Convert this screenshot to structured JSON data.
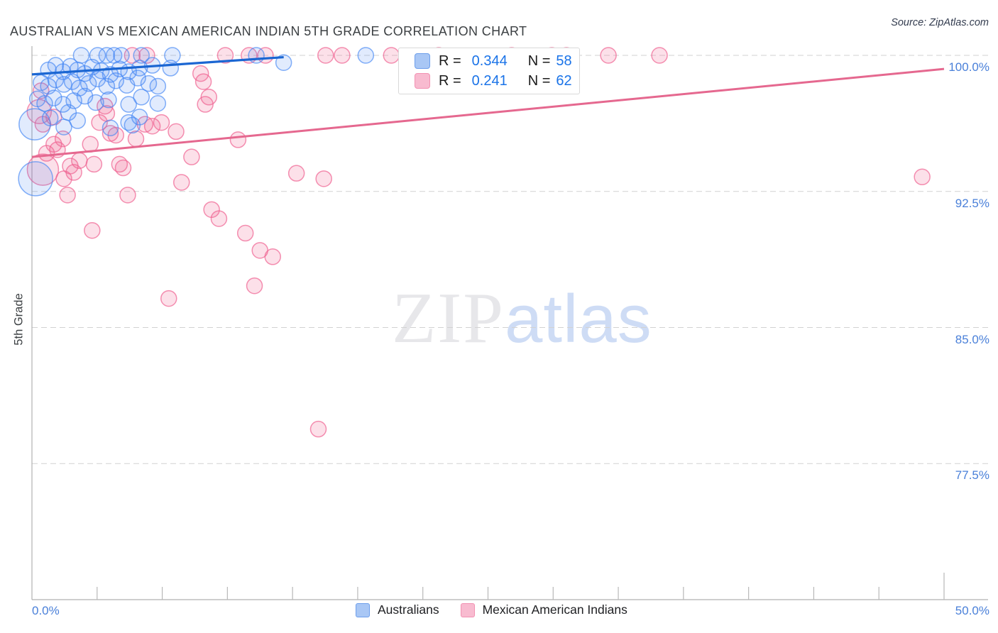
{
  "header": {
    "title": "AUSTRALIAN VS MEXICAN AMERICAN INDIAN 5TH GRADE CORRELATION CHART",
    "source": "Source: ZipAtlas.com"
  },
  "watermark": {
    "part1": "ZIP",
    "part2": "atlas"
  },
  "y_axis_title": "5th Grade",
  "legend_box": {
    "rows": [
      {
        "series": "Australians",
        "r_label": "R =",
        "r_value": "0.344",
        "n_label": "N =",
        "n_value": "58"
      },
      {
        "series": "Mexican American Indians",
        "r_label": "R =",
        "r_value": "0.241",
        "n_label": "N =",
        "n_value": "62"
      }
    ]
  },
  "bottom_legend": [
    {
      "label": "Australians"
    },
    {
      "label": "Mexican American Indians"
    }
  ],
  "chart_data": {
    "type": "scatter",
    "title": "AUSTRALIAN VS MEXICAN AMERICAN INDIAN 5TH GRADE CORRELATION CHART",
    "xlabel": "",
    "ylabel": "5th Grade",
    "x_range": [
      0,
      50
    ],
    "y_range": [
      70,
      100.5
    ],
    "x_tick_labels": [
      "0.0%",
      "50.0%"
    ],
    "y_ticks": [
      {
        "label": "100.0%",
        "value": 100.0
      },
      {
        "label": "92.5%",
        "value": 92.5
      },
      {
        "label": "85.0%",
        "value": 85.0
      },
      {
        "label": "77.5%",
        "value": 77.5
      }
    ],
    "grid": "horizontal-dashed",
    "legend_position": "top-right",
    "colors": {
      "australians_stroke": "#4285f4",
      "australians_fill": "#a9c7f5",
      "australians_trend": "#1b66d2",
      "mexican_stroke": "#f06292",
      "mexican_fill": "#f8bbd0",
      "mexican_trend": "#e5688f",
      "axis_text": "#4a80d9",
      "gridline": "#d2d2d2"
    },
    "series": [
      {
        "name": "Australians",
        "R": 0.344,
        "N": 58,
        "trend": {
          "x": [
            0,
            13.8
          ],
          "y": [
            98.95,
            99.9
          ]
        },
        "points": [
          [
            2.7,
            100
          ],
          [
            3.6,
            100
          ],
          [
            4.1,
            100
          ],
          [
            4.5,
            100
          ],
          [
            4.9,
            100
          ],
          [
            6.0,
            100
          ],
          [
            7.7,
            100
          ],
          [
            12.3,
            100
          ],
          [
            18.3,
            100
          ],
          [
            0.9,
            99.2
          ],
          [
            1.3,
            99.45
          ],
          [
            1.7,
            99.1
          ],
          [
            2.1,
            99.4
          ],
          [
            2.5,
            99.2
          ],
          [
            2.9,
            99.0
          ],
          [
            3.3,
            99.35
          ],
          [
            3.8,
            99.15
          ],
          [
            4.3,
            98.95
          ],
          [
            4.8,
            99.25
          ],
          [
            5.3,
            99.1
          ],
          [
            5.9,
            99.3
          ],
          [
            6.6,
            99.45
          ],
          [
            7.6,
            99.3
          ],
          [
            13.8,
            99.6
          ],
          [
            0.5,
            98.5
          ],
          [
            0.9,
            98.3
          ],
          [
            1.3,
            98.65
          ],
          [
            1.75,
            98.4
          ],
          [
            2.2,
            98.55
          ],
          [
            2.6,
            98.2
          ],
          [
            3.1,
            98.45
          ],
          [
            3.6,
            98.7
          ],
          [
            4.1,
            98.3
          ],
          [
            4.6,
            98.6
          ],
          [
            5.2,
            98.35
          ],
          [
            5.8,
            98.75
          ],
          [
            6.4,
            98.45
          ],
          [
            6.9,
            98.3
          ],
          [
            0.3,
            97.6
          ],
          [
            0.7,
            97.35
          ],
          [
            1.2,
            97.65
          ],
          [
            1.7,
            97.3
          ],
          [
            2.3,
            97.5
          ],
          [
            2.9,
            97.75
          ],
          [
            3.5,
            97.4
          ],
          [
            4.2,
            97.55
          ],
          [
            5.3,
            97.3
          ],
          [
            6.0,
            97.7
          ],
          [
            6.9,
            97.35
          ],
          [
            0.15,
            96.2,
            22
          ],
          [
            0.2,
            93.2,
            24
          ],
          [
            1.0,
            96.55
          ],
          [
            2.0,
            96.85
          ],
          [
            4.3,
            96.0
          ],
          [
            5.3,
            96.3
          ],
          [
            5.9,
            96.6
          ],
          [
            5.5,
            96.15
          ],
          [
            1.75,
            96.05
          ],
          [
            2.5,
            96.4
          ]
        ]
      },
      {
        "name": "Mexican American Indians",
        "R": 0.241,
        "N": 62,
        "trend": {
          "x": [
            0,
            50
          ],
          "y": [
            94.4,
            99.25
          ]
        },
        "points": [
          [
            5.5,
            100
          ],
          [
            6.3,
            100
          ],
          [
            10.6,
            100
          ],
          [
            11.9,
            100
          ],
          [
            12.8,
            100
          ],
          [
            16.1,
            100
          ],
          [
            17.0,
            100
          ],
          [
            19.7,
            100
          ],
          [
            22.3,
            100
          ],
          [
            26.3,
            100
          ],
          [
            28.5,
            100
          ],
          [
            29.3,
            100
          ],
          [
            31.6,
            100
          ],
          [
            34.4,
            100
          ],
          [
            0.5,
            98.05
          ],
          [
            9.25,
            99.0
          ],
          [
            9.4,
            98.55
          ],
          [
            9.7,
            97.7
          ],
          [
            9.5,
            97.3
          ],
          [
            4.0,
            97.2
          ],
          [
            0.4,
            96.9,
            17
          ],
          [
            1.2,
            96.6
          ],
          [
            0.6,
            96.2
          ],
          [
            4.1,
            96.8
          ],
          [
            3.7,
            96.3
          ],
          [
            6.2,
            96.2
          ],
          [
            6.6,
            96.1
          ],
          [
            7.1,
            96.3
          ],
          [
            7.9,
            95.8
          ],
          [
            4.3,
            95.7
          ],
          [
            4.6,
            95.6
          ],
          [
            5.7,
            95.4
          ],
          [
            1.7,
            95.4
          ],
          [
            1.2,
            95.1
          ],
          [
            3.2,
            95.1
          ],
          [
            11.3,
            95.35
          ],
          [
            0.8,
            94.6
          ],
          [
            1.4,
            94.8
          ],
          [
            2.6,
            94.2
          ],
          [
            3.4,
            94.0
          ],
          [
            2.1,
            93.9
          ],
          [
            2.3,
            93.55
          ],
          [
            1.75,
            93.2
          ],
          [
            1.95,
            92.3
          ],
          [
            4.8,
            94.0
          ],
          [
            5.0,
            93.8
          ],
          [
            5.25,
            92.3
          ],
          [
            8.2,
            93.0
          ],
          [
            8.75,
            94.4
          ],
          [
            14.5,
            93.5
          ],
          [
            16.0,
            93.2
          ],
          [
            48.8,
            93.3
          ],
          [
            0.6,
            93.7,
            22
          ],
          [
            9.85,
            91.5
          ],
          [
            10.25,
            91.0
          ],
          [
            3.3,
            90.35
          ],
          [
            11.7,
            90.2
          ],
          [
            12.5,
            89.25
          ],
          [
            13.2,
            88.9
          ],
          [
            12.2,
            87.3
          ],
          [
            7.5,
            86.6
          ],
          [
            15.7,
            79.4
          ]
        ]
      }
    ]
  }
}
